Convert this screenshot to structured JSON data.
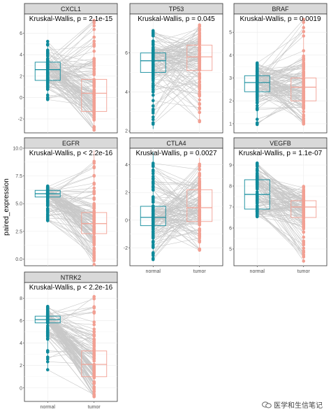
{
  "chart_data": {
    "type": "paired_box",
    "ylabel": "paired_expression",
    "groups": [
      "normal",
      "tumor"
    ],
    "colors": {
      "normal": "#0f8a9b",
      "tumor": "#f2a093",
      "lines": "#c8c8c8"
    },
    "grid": true,
    "panels": [
      {
        "gene": "CXCL1",
        "test": "Kruskal-Wallis, p = 2.1e-15",
        "yticks": [
          -2,
          0,
          2,
          4,
          6
        ],
        "ylim": [
          -3.3,
          7.8
        ],
        "normal": {
          "median": 2.6,
          "q1": 1.6,
          "q3": 3.3,
          "min": -0.3,
          "max": 5.3
        },
        "tumor": {
          "median": 0.4,
          "q1": -1.3,
          "q3": 1.7,
          "min": -3.1,
          "max": 7.3
        }
      },
      {
        "gene": "TP53",
        "test": "Kruskal-Wallis, p = 0.045",
        "yticks": [
          2,
          4,
          6
        ],
        "ylim": [
          1.9,
          8.0
        ],
        "normal": {
          "median": 5.6,
          "q1": 5.0,
          "q3": 6.0,
          "min": 2.1,
          "max": 7.2
        },
        "tumor": {
          "median": 5.8,
          "q1": 5.1,
          "q3": 6.4,
          "min": 2.4,
          "max": 7.5
        }
      },
      {
        "gene": "BRAF",
        "test": "Kruskal-Wallis, p = 0.0019",
        "yticks": [
          1,
          2,
          3,
          4,
          5
        ],
        "ylim": [
          0.6,
          5.8
        ],
        "normal": {
          "median": 2.8,
          "q1": 2.4,
          "q3": 3.1,
          "min": 0.95,
          "max": 3.7
        },
        "tumor": {
          "median": 2.6,
          "q1": 2.0,
          "q3": 3.0,
          "min": 0.95,
          "max": 5.6
        }
      },
      {
        "gene": "EGFR",
        "test": "Kruskal-Wallis, p < 2.2e-16",
        "yticks": [
          0.0,
          2.5,
          5.0,
          7.5,
          10.0
        ],
        "ytick_labels": [
          "0.0",
          "2.5",
          "5.0",
          "7.5",
          "10.0"
        ],
        "ylim": [
          -0.6,
          10.0
        ],
        "normal": {
          "median": 5.9,
          "q1": 5.6,
          "q3": 6.2,
          "min": 3.3,
          "max": 6.6
        },
        "tumor": {
          "median": 3.2,
          "q1": 2.3,
          "q3": 4.2,
          "min": -0.5,
          "max": 9.8
        }
      },
      {
        "gene": "CTLA4",
        "test": "Kruskal-Wallis, p = 0.0027",
        "yticks": [
          -2,
          0,
          2,
          4
        ],
        "ylim": [
          -3.3,
          5.2
        ],
        "normal": {
          "median": 0.2,
          "q1": -0.4,
          "q3": 1.0,
          "min": -2.9,
          "max": 4.9
        },
        "tumor": {
          "median": 0.9,
          "q1": -0.1,
          "q3": 2.2,
          "min": -2.2,
          "max": 4.5
        }
      },
      {
        "gene": "VEGFB",
        "test": "Kruskal-Wallis, p = 1.1e-07",
        "yticks": [
          5,
          6,
          7,
          8,
          9
        ],
        "ylim": [
          4.2,
          9.8
        ],
        "normal": {
          "median": 7.6,
          "q1": 6.9,
          "q3": 8.3,
          "min": 6.5,
          "max": 9.1
        },
        "tumor": {
          "median": 7.0,
          "q1": 6.5,
          "q3": 7.3,
          "min": 4.4,
          "max": 8.0
        }
      },
      {
        "gene": "NTRK2",
        "test": "Kruskal-Wallis, p < 2.2e-16",
        "yticks": [
          0,
          2,
          4,
          6,
          8
        ],
        "ylim": [
          -1.2,
          9.4
        ],
        "normal": {
          "median": 6.1,
          "q1": 5.8,
          "q3": 6.4,
          "min": 1.5,
          "max": 7.3
        },
        "tumor": {
          "median": 2.1,
          "q1": 1.0,
          "q3": 3.3,
          "min": -0.8,
          "max": 8.3
        }
      }
    ]
  },
  "watermark": {
    "text": "医学和生信笔记",
    "icon": "wechat-icon"
  }
}
